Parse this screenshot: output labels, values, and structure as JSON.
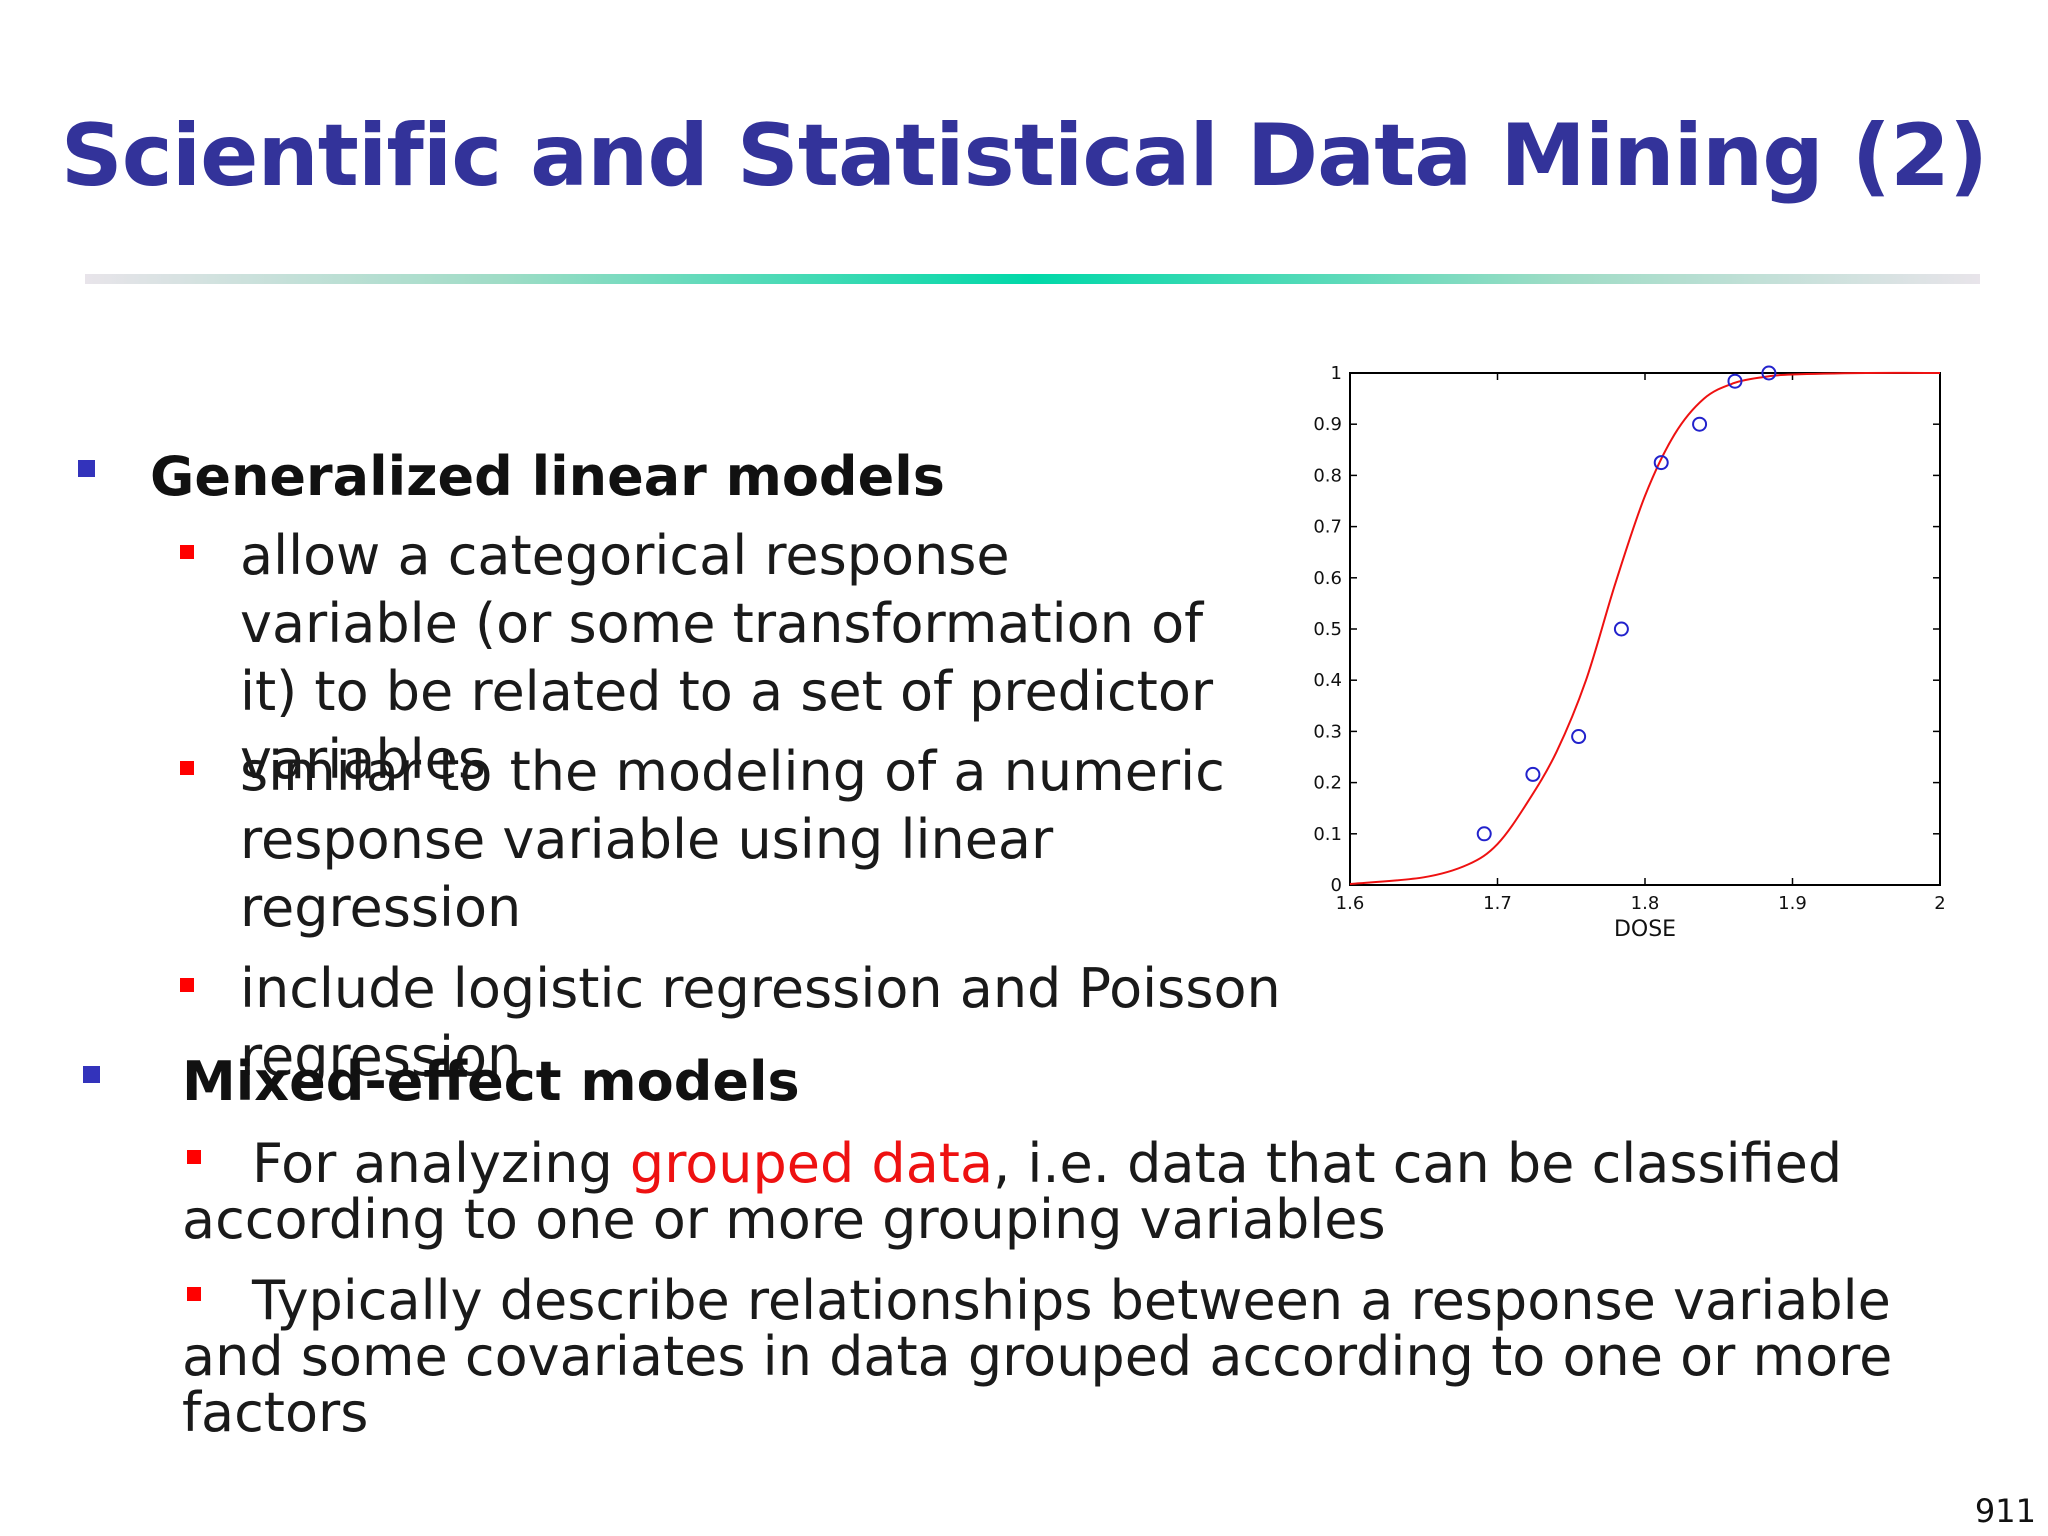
{
  "slide": {
    "title": "Scientific and Statistical Data Mining (2)",
    "page_number": "911"
  },
  "glm": {
    "heading": "Generalized linear models",
    "points": [
      "allow a categorical response variable (or some transformation of it) to be related to a set of predictor variables",
      "similar to the modeling of a numeric response variable using linear regression",
      "include logistic regression and Poisson regression"
    ]
  },
  "mixed": {
    "heading": "Mixed-effect models",
    "point1_before": "For analyzing ",
    "point1_highlight": "grouped data",
    "point1_after": ", i.e. data that can be classified according to one or more grouping variables",
    "point2": "Typically describe relationships between a response variable and some covariates in data grouped according to one or more factors"
  },
  "colors": {
    "title": "#33339a",
    "level1_bullet": "#3333bb",
    "level2_bullet": "#ff0000",
    "highlight": "#ee1111",
    "fit_curve": "#ee1111",
    "points": "#2222cc"
  },
  "chart_data": {
    "type": "scatter",
    "xlabel": "DOSE",
    "ylabel": "",
    "xlim": [
      1.6,
      2.0
    ],
    "ylim": [
      0,
      1
    ],
    "x_ticks": [
      "1.6",
      "1.7",
      "1.8",
      "1.9",
      "2"
    ],
    "y_ticks": [
      "0",
      "0.1",
      "0.2",
      "0.3",
      "0.4",
      "0.5",
      "0.6",
      "0.7",
      "0.8",
      "0.9",
      "1"
    ],
    "grid": false,
    "series": [
      {
        "kind": "points",
        "marker": "circle",
        "x": [
          1.691,
          1.724,
          1.755,
          1.784,
          1.811,
          1.837,
          1.861,
          1.884
        ],
        "y": [
          0.1,
          0.216,
          0.29,
          0.5,
          0.825,
          0.9,
          0.984,
          1.0
        ]
      },
      {
        "kind": "fitted_curve",
        "x": [
          1.6,
          1.65,
          1.68,
          1.7,
          1.72,
          1.74,
          1.76,
          1.78,
          1.8,
          1.82,
          1.84,
          1.86,
          1.88,
          1.9,
          1.95,
          2.0
        ],
        "y": [
          0.002,
          0.015,
          0.04,
          0.08,
          0.16,
          0.26,
          0.4,
          0.59,
          0.76,
          0.88,
          0.95,
          0.98,
          0.992,
          0.997,
          1.0,
          1.0
        ]
      }
    ]
  }
}
